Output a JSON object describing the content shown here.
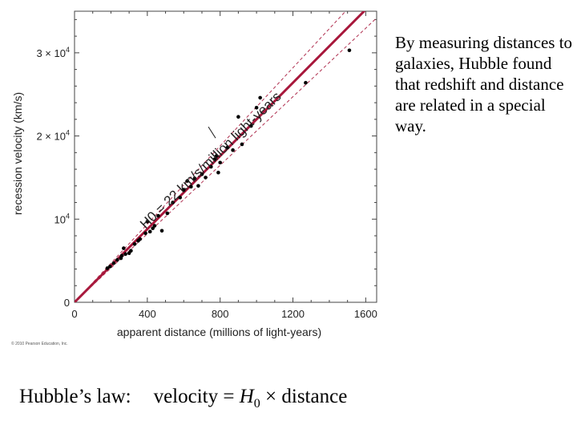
{
  "chart_data": {
    "type": "scatter",
    "xlabel": "apparent distance (millions of light-years)",
    "ylabel": "recession velocity (km/s)",
    "xlim": [
      0,
      1660
    ],
    "ylim": [
      0,
      35000
    ],
    "x_ticks": [
      0,
      400,
      800,
      1200,
      1600
    ],
    "x_tick_labels": [
      "0",
      "400",
      "800",
      "1200",
      "1600"
    ],
    "y_ticks": [
      0,
      10000,
      20000,
      30000
    ],
    "y_tick_labels": [
      {
        "base": "0",
        "exp": ""
      },
      {
        "base": "10",
        "exp": "4"
      },
      {
        "base": "2 × 10",
        "exp": "4"
      },
      {
        "base": "3 × 10",
        "exp": "4"
      }
    ],
    "fit_line": {
      "label": "H0 = 22 km/s/million light-years",
      "slope": 22.0
    },
    "bounds": {
      "upper_slope": 23.5,
      "lower_slope": 20.6
    },
    "points": [
      [
        180,
        4100
      ],
      [
        195,
        4300
      ],
      [
        215,
        4700
      ],
      [
        235,
        5100
      ],
      [
        255,
        5300
      ],
      [
        260,
        5600
      ],
      [
        270,
        6500
      ],
      [
        280,
        5800
      ],
      [
        300,
        5900
      ],
      [
        310,
        6200
      ],
      [
        330,
        7000
      ],
      [
        350,
        7400
      ],
      [
        360,
        7600
      ],
      [
        390,
        8300
      ],
      [
        400,
        9700
      ],
      [
        415,
        8500
      ],
      [
        430,
        8900
      ],
      [
        440,
        9200
      ],
      [
        460,
        10400
      ],
      [
        480,
        8600
      ],
      [
        510,
        10700
      ],
      [
        540,
        12000
      ],
      [
        580,
        12600
      ],
      [
        600,
        13500
      ],
      [
        620,
        14600
      ],
      [
        640,
        13900
      ],
      [
        660,
        14900
      ],
      [
        680,
        14000
      ],
      [
        700,
        15400
      ],
      [
        720,
        15000
      ],
      [
        750,
        16300
      ],
      [
        770,
        17200
      ],
      [
        780,
        17600
      ],
      [
        790,
        15600
      ],
      [
        800,
        16800
      ],
      [
        840,
        18600
      ],
      [
        870,
        18300
      ],
      [
        900,
        22300
      ],
      [
        920,
        19000
      ],
      [
        970,
        21200
      ],
      [
        1000,
        23400
      ],
      [
        1020,
        24600
      ],
      [
        1270,
        26400
      ],
      [
        1510,
        30300
      ]
    ],
    "copyright": "© 2010 Pearson Education, Inc."
  },
  "description_text": "By measuring distances to galaxies, Hubble found that redshift and distance are related in a special way.",
  "law": {
    "label": "Hubble’s law:",
    "formula_prefix": "velocity = ",
    "formula_symbol": "H",
    "formula_subscript": "0",
    "formula_suffix": " × distance"
  }
}
